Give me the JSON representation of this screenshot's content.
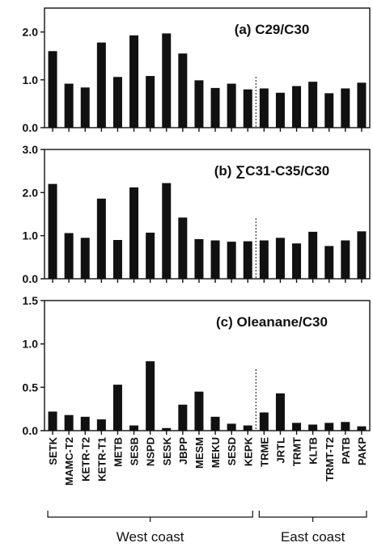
{
  "chart_data": {
    "type": "bar",
    "categories": [
      "SETK",
      "MAMC-T2",
      "KETR-T2",
      "KETR-T1",
      "METB",
      "SESB",
      "NSPD",
      "SESK",
      "JBPP",
      "MESM",
      "MEKU",
      "SESD",
      "KEPK",
      "TRME",
      "JRTL",
      "TRMT",
      "KLTB",
      "TRMT-T2",
      "PATB",
      "PAKP"
    ],
    "groups": [
      {
        "label": "West coast",
        "from": 0,
        "to": 12
      },
      {
        "label": "East coast",
        "from": 13,
        "to": 19
      }
    ],
    "panels": [
      {
        "title": "(a) C29/C30",
        "ylim": [
          0,
          2.5
        ],
        "yticks": [
          "0.0",
          "1.0",
          "2.0"
        ],
        "ytick_values": [
          0,
          1,
          2
        ],
        "values": [
          1.6,
          0.92,
          0.84,
          1.78,
          1.06,
          1.93,
          1.08,
          1.97,
          1.55,
          0.99,
          0.83,
          0.92,
          0.8,
          0.82,
          0.73,
          0.87,
          0.96,
          0.72,
          0.82,
          0.94
        ]
      },
      {
        "title": "(b) ∑C31-C35/C30",
        "ylim": [
          0,
          3.0
        ],
        "yticks": [
          "0.0",
          "1.0",
          "2.0",
          "3.0"
        ],
        "ytick_values": [
          0,
          1,
          2,
          3
        ],
        "values": [
          2.2,
          1.06,
          0.95,
          1.86,
          0.9,
          2.12,
          1.07,
          2.22,
          1.42,
          0.92,
          0.89,
          0.86,
          0.87,
          0.89,
          0.95,
          0.82,
          1.09,
          0.76,
          0.89,
          1.1
        ]
      },
      {
        "title": "(c) Oleanane/C30",
        "ylim": [
          0,
          1.5
        ],
        "yticks": [
          "0.0",
          "0.5",
          "1.0",
          "1.5"
        ],
        "ytick_values": [
          0,
          0.5,
          1.0,
          1.5
        ],
        "values": [
          0.22,
          0.18,
          0.16,
          0.13,
          0.53,
          0.06,
          0.8,
          0.03,
          0.3,
          0.45,
          0.16,
          0.08,
          0.06,
          0.21,
          0.43,
          0.09,
          0.07,
          0.09,
          0.1,
          0.05
        ]
      }
    ]
  }
}
